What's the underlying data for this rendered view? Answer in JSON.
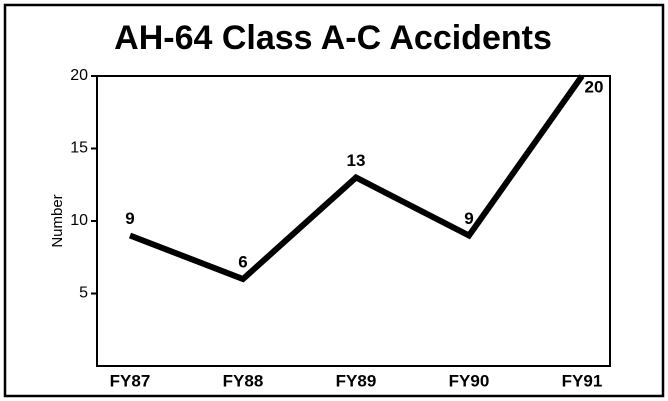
{
  "chart_data": {
    "type": "line",
    "title": "AH-64 Class A-C Accidents",
    "ylabel": "Number",
    "categories": [
      "FY87",
      "FY88",
      "FY89",
      "FY90",
      "FY91"
    ],
    "series": [
      {
        "name": "Accidents",
        "color": "#000000",
        "values": [
          9,
          6,
          13,
          9,
          20
        ]
      }
    ],
    "ylim": [
      0,
      20
    ],
    "yticks": [
      5,
      10,
      15,
      20
    ],
    "grid": false,
    "data_labels": true
  }
}
